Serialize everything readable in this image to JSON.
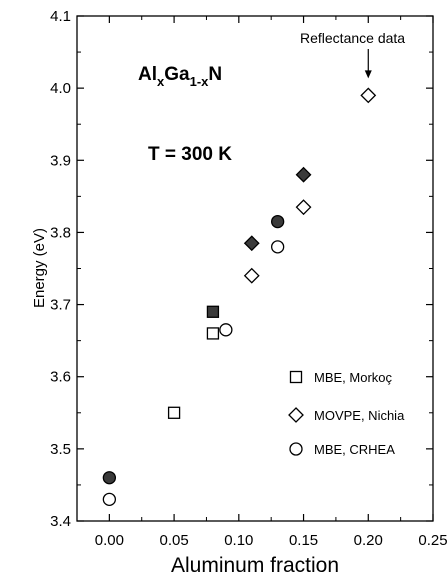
{
  "chart_data": {
    "type": "scatter",
    "xlabel": "Aluminum fraction",
    "ylabel": "Energy (eV)",
    "xlim": [
      -0.025,
      0.25
    ],
    "ylim": [
      3.4,
      4.1
    ],
    "grid": false,
    "legend_position": "right",
    "x_ticks": [
      "0.00",
      "0.05",
      "0.10",
      "0.15",
      "0.20",
      "0.25"
    ],
    "y_ticks": [
      "3.4",
      "3.5",
      "3.6",
      "3.7",
      "3.8",
      "3.9",
      "4.0",
      "4.1"
    ],
    "series": [
      {
        "name": "MBE, Morkoç",
        "marker": "square",
        "points": [
          {
            "x": 0.05,
            "y": 3.55,
            "filled": false
          },
          {
            "x": 0.08,
            "y": 3.66,
            "filled": false
          },
          {
            "x": 0.08,
            "y": 3.69,
            "filled": true
          }
        ]
      },
      {
        "name": "MOVPE, Nichia",
        "marker": "diamond",
        "points": [
          {
            "x": 0.11,
            "y": 3.74,
            "filled": false
          },
          {
            "x": 0.11,
            "y": 3.785,
            "filled": true
          },
          {
            "x": 0.15,
            "y": 3.835,
            "filled": false
          },
          {
            "x": 0.15,
            "y": 3.88,
            "filled": true
          },
          {
            "x": 0.2,
            "y": 3.99,
            "filled": false
          }
        ]
      },
      {
        "name": "MBE, CRHEA",
        "marker": "circle",
        "points": [
          {
            "x": 0.0,
            "y": 3.43,
            "filled": false
          },
          {
            "x": 0.0,
            "y": 3.46,
            "filled": true
          },
          {
            "x": 0.09,
            "y": 3.665,
            "filled": false
          },
          {
            "x": 0.13,
            "y": 3.78,
            "filled": false
          },
          {
            "x": 0.13,
            "y": 3.815,
            "filled": true
          }
        ]
      }
    ],
    "annotations": {
      "material": {
        "base": "Al",
        "sub1": "x",
        "mid": "Ga",
        "sub2": "1-x",
        "end": "N"
      },
      "temperature": "T = 300 K",
      "reflectance": "Reflectance data",
      "arrow_target": {
        "x": 0.2,
        "y": 3.99
      }
    }
  }
}
